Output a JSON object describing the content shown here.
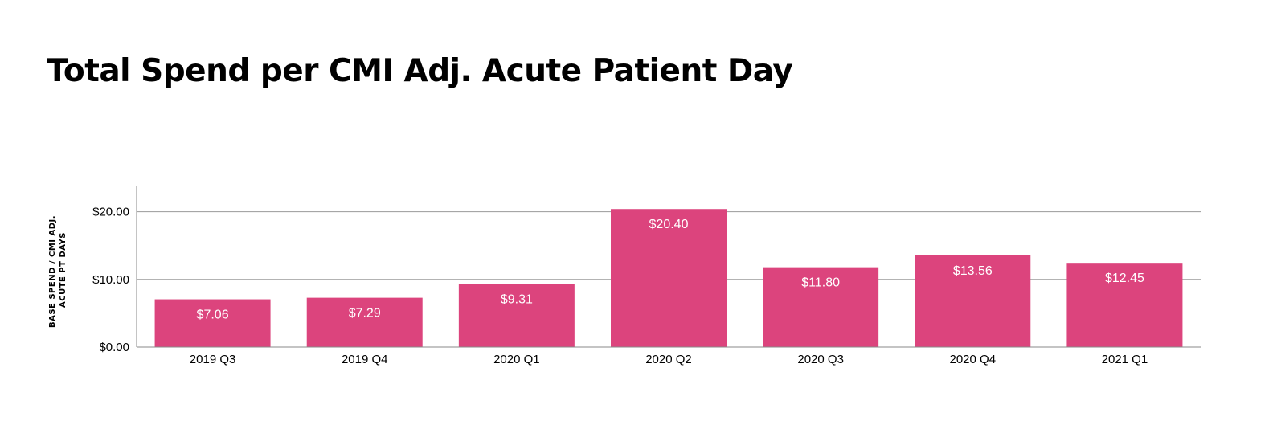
{
  "chart_data": {
    "type": "bar",
    "title": "Total Spend per CMI Adj. Acute Patient Day",
    "ylabel_lines": [
      "BASE SPEND / CMI ADJ.",
      "ACUTE PT DAYS"
    ],
    "xlabel": "",
    "categories": [
      "2019 Q3",
      "2019 Q4",
      "2020 Q1",
      "2020 Q2",
      "2020 Q3",
      "2020 Q4",
      "2021 Q1"
    ],
    "values": [
      7.06,
      7.29,
      9.31,
      20.4,
      11.8,
      13.56,
      12.45
    ],
    "value_labels": [
      "$7.06",
      "$7.29",
      "$9.31",
      "$20.40",
      "$11.80",
      "$13.56",
      "$12.45"
    ],
    "y_ticks": [
      0,
      10,
      20
    ],
    "y_tick_labels": [
      "$0.00",
      "$10.00",
      "$20.00"
    ],
    "ylim": [
      0,
      24
    ],
    "grid": true,
    "legend": "none",
    "bar_color": "#dc447d",
    "grid_color": "#9a9a9a"
  }
}
